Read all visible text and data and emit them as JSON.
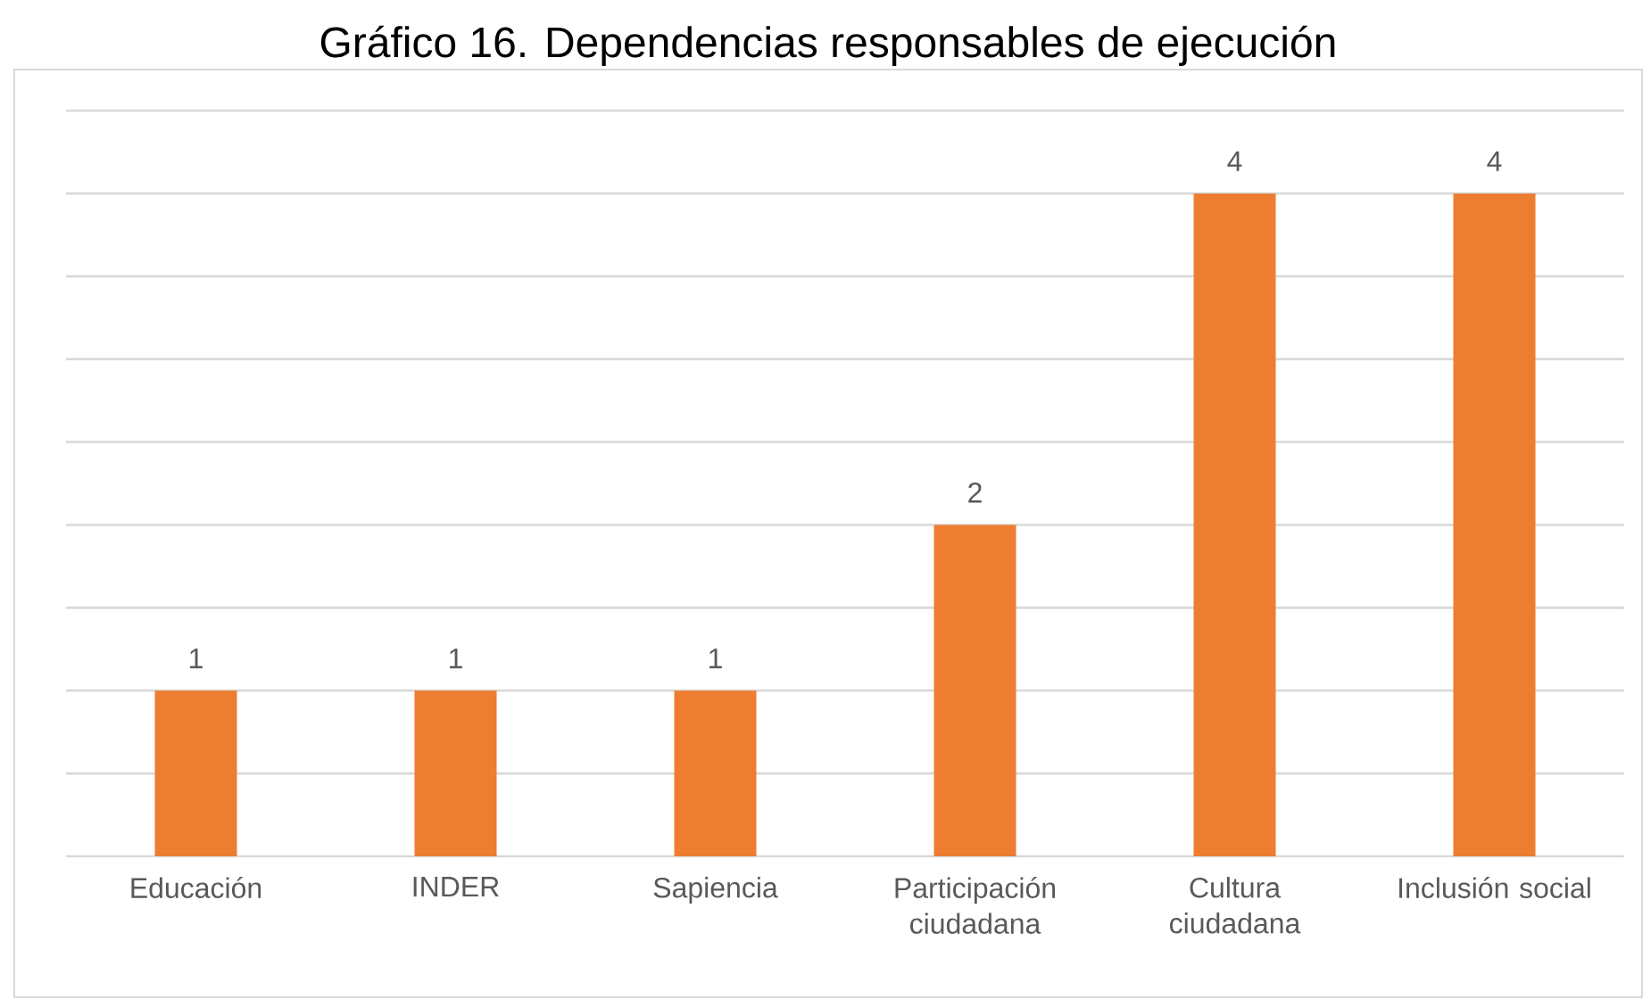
{
  "chart_data": {
    "type": "bar",
    "title": "Gráfico 16. Dependencias responsables de ejecución",
    "categories": [
      "Educación",
      "INDER",
      "Sapiencia",
      "Participación ciudadana",
      "Cultura ciudadana",
      "Inclusión social"
    ],
    "values": [
      1,
      1,
      1,
      2,
      4,
      4
    ],
    "color": "#ed7d31",
    "ylim": [
      0,
      4.5
    ],
    "yticks": [
      {
        "value": 0,
        "label": null
      },
      {
        "value": 0.5,
        "label": null
      },
      {
        "value": 1,
        "label": null
      },
      {
        "value": 1.5,
        "label": null
      },
      {
        "value": 2,
        "label": null
      },
      {
        "value": 2.5,
        "label": null
      },
      {
        "value": 3,
        "label": null
      },
      {
        "value": 3.5,
        "label": null
      },
      {
        "value": 4,
        "label": null
      },
      {
        "value": 4.5,
        "label": null
      }
    ],
    "grid": "y",
    "tick_labels": "x",
    "data_labels": true
  }
}
